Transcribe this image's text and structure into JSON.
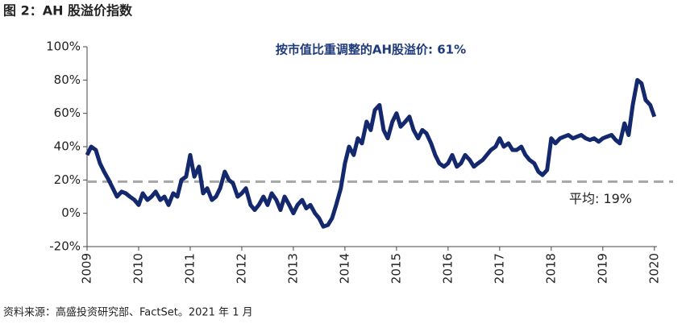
{
  "chart_data": {
    "type": "line",
    "title": "图 2：AH 股溢价指数",
    "annotation": "按市值比重调整的AH股溢价: 61%",
    "source": "资料来源：高盛投资研究部、FactSet。2021 年 1 月",
    "average": {
      "value": 19,
      "label": "平均: 19%"
    },
    "average_color": "#a6a6a6",
    "xlim": [
      2009,
      2020.05
    ],
    "ylim": [
      -20,
      100
    ],
    "xticks": [
      2009,
      2010,
      2011,
      2012,
      2013,
      2014,
      2015,
      2016,
      2017,
      2018,
      2019,
      2020
    ],
    "yticks": [
      {
        "value": -20,
        "label": "-20%"
      },
      {
        "value": 0,
        "label": "0%"
      },
      {
        "value": 20,
        "label": "20%"
      },
      {
        "value": 40,
        "label": "40%"
      },
      {
        "value": 60,
        "label": "60%"
      },
      {
        "value": 80,
        "label": "80%"
      },
      {
        "value": 100,
        "label": "100%"
      }
    ],
    "x": [
      2009.0,
      2009.08,
      2009.17,
      2009.25,
      2009.33,
      2009.42,
      2009.5,
      2009.58,
      2009.67,
      2009.75,
      2009.83,
      2009.92,
      2010.0,
      2010.08,
      2010.17,
      2010.25,
      2010.33,
      2010.42,
      2010.5,
      2010.58,
      2010.67,
      2010.75,
      2010.83,
      2010.92,
      2011.0,
      2011.08,
      2011.17,
      2011.25,
      2011.33,
      2011.42,
      2011.5,
      2011.58,
      2011.67,
      2011.75,
      2011.83,
      2011.92,
      2012.0,
      2012.08,
      2012.17,
      2012.25,
      2012.33,
      2012.42,
      2012.5,
      2012.58,
      2012.67,
      2012.75,
      2012.83,
      2012.92,
      2013.0,
      2013.08,
      2013.17,
      2013.25,
      2013.33,
      2013.42,
      2013.5,
      2013.58,
      2013.67,
      2013.75,
      2013.83,
      2013.92,
      2014.0,
      2014.08,
      2014.17,
      2014.25,
      2014.33,
      2014.42,
      2014.5,
      2014.58,
      2014.67,
      2014.75,
      2014.83,
      2014.92,
      2015.0,
      2015.08,
      2015.17,
      2015.25,
      2015.33,
      2015.42,
      2015.5,
      2015.58,
      2015.67,
      2015.75,
      2015.83,
      2015.92,
      2016.0,
      2016.08,
      2016.17,
      2016.25,
      2016.33,
      2016.42,
      2016.5,
      2016.58,
      2016.67,
      2016.75,
      2016.83,
      2016.92,
      2017.0,
      2017.08,
      2017.17,
      2017.25,
      2017.33,
      2017.42,
      2017.5,
      2017.58,
      2017.67,
      2017.75,
      2017.83,
      2017.92,
      2018.0,
      2018.08,
      2018.17,
      2018.25,
      2018.33,
      2018.42,
      2018.5,
      2018.58,
      2018.67,
      2018.75,
      2018.83,
      2018.92,
      2019.0,
      2019.08,
      2019.17,
      2019.25,
      2019.33,
      2019.42,
      2019.5,
      2019.58,
      2019.67,
      2019.75,
      2019.83,
      2019.92,
      2020.0
    ],
    "series": [
      {
        "color": "#14286e",
        "values": [
          35,
          40,
          38,
          30,
          25,
          20,
          15,
          10,
          13,
          12,
          10,
          8,
          5,
          12,
          8,
          10,
          13,
          8,
          10,
          5,
          12,
          10,
          20,
          22,
          35,
          22,
          28,
          12,
          15,
          8,
          10,
          15,
          25,
          20,
          18,
          10,
          12,
          15,
          5,
          2,
          5,
          10,
          5,
          12,
          8,
          2,
          10,
          5,
          0,
          5,
          8,
          3,
          5,
          0,
          -3,
          -8,
          -7,
          -3,
          5,
          15,
          30,
          40,
          35,
          45,
          42,
          55,
          50,
          62,
          65,
          50,
          45,
          55,
          60,
          52,
          55,
          58,
          50,
          45,
          50,
          48,
          42,
          35,
          30,
          28,
          30,
          35,
          28,
          30,
          35,
          32,
          28,
          30,
          32,
          35,
          38,
          40,
          45,
          40,
          42,
          38,
          38,
          40,
          35,
          32,
          30,
          25,
          23,
          26,
          45,
          42,
          45,
          46,
          47,
          45,
          46,
          47,
          45,
          44,
          45,
          43,
          45,
          46,
          47,
          44,
          42,
          54,
          47,
          65,
          80,
          78,
          68,
          65,
          58
        ]
      }
    ]
  }
}
